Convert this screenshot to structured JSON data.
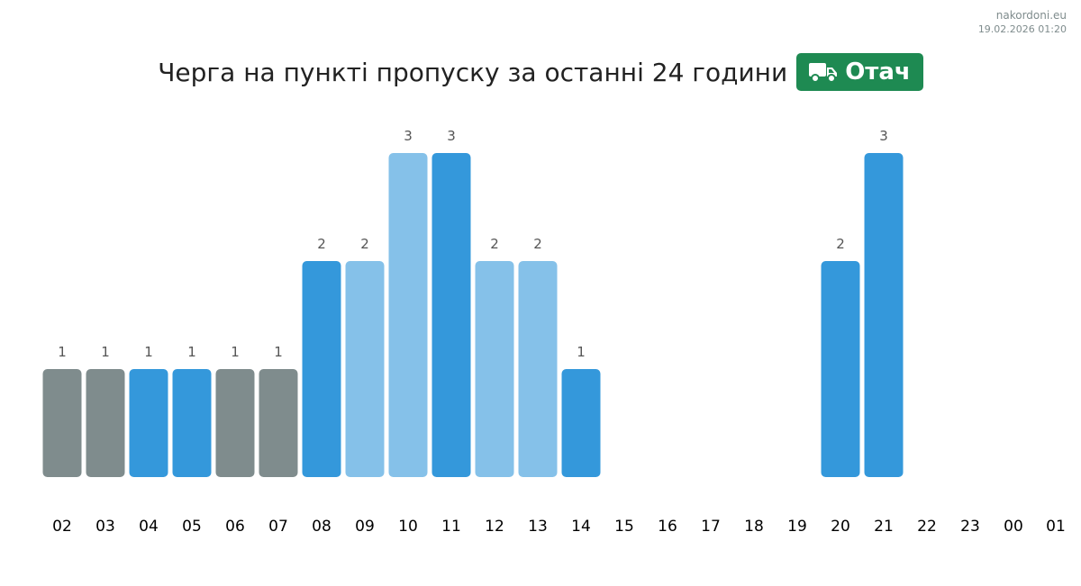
{
  "watermark": {
    "site": "nakordoni.eu",
    "timestamp": "19.02.2026 01:20"
  },
  "header": {
    "title": "Черга на пункті пропуску за останні 24 години",
    "badge": "Отач",
    "badge_icon": "truck-icon",
    "badge_color": "#1e8a52"
  },
  "colors": {
    "gray": "#7f8c8d",
    "blue": "#3498db",
    "lightblue": "#85c1e9"
  },
  "chart_data": {
    "type": "bar",
    "title": "Черга на пункті пропуску за останні 24 години",
    "xlabel": "",
    "ylabel": "",
    "ylim": [
      0,
      3
    ],
    "grid": false,
    "categories": [
      "02",
      "03",
      "04",
      "05",
      "06",
      "07",
      "08",
      "09",
      "10",
      "11",
      "12",
      "13",
      "14",
      "15",
      "16",
      "17",
      "18",
      "19",
      "20",
      "21",
      "22",
      "23",
      "00",
      "01"
    ],
    "values": [
      1,
      1,
      1,
      1,
      1,
      1,
      2,
      2,
      3,
      3,
      2,
      2,
      1,
      0,
      0,
      0,
      0,
      0,
      2,
      3,
      0,
      0,
      0,
      0
    ],
    "bar_colors": [
      "gray",
      "gray",
      "blue",
      "blue",
      "gray",
      "gray",
      "blue",
      "lightblue",
      "lightblue",
      "blue",
      "lightblue",
      "lightblue",
      "blue",
      "",
      "",
      "",
      "",
      "",
      "blue",
      "blue",
      "",
      "",
      "",
      ""
    ]
  }
}
